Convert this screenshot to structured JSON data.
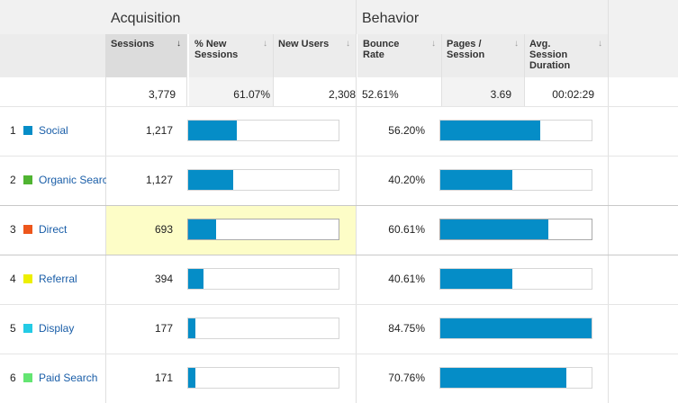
{
  "groups": {
    "acquisition": "Acquisition",
    "behavior": "Behavior"
  },
  "columns": {
    "sessions": "Sessions",
    "pct_new_sessions": "% New Sessions",
    "new_users": "New Users",
    "bounce_rate": "Bounce Rate",
    "pages_session": "Pages / Session",
    "avg_session_duration": "Avg. Session Duration"
  },
  "totals": {
    "sessions": "3,779",
    "pct_new_sessions": "61.07%",
    "new_users": "2,308",
    "bounce_rate": "52.61%",
    "pages_session": "3.69",
    "avg_session_duration": "00:02:29"
  },
  "rows": [
    {
      "rank": "1",
      "channel": "Social",
      "color": "#058dc7",
      "sessions": "1,217",
      "sessions_share": 0.322,
      "bounce_rate": "56.20%",
      "bounce_share": 0.663
    },
    {
      "rank": "2",
      "channel": "Organic Search",
      "color": "#50b432",
      "sessions": "1,127",
      "sessions_share": 0.298,
      "bounce_rate": "40.20%",
      "bounce_share": 0.474
    },
    {
      "rank": "3",
      "channel": "Direct",
      "color": "#ed561b",
      "sessions": "693",
      "sessions_share": 0.183,
      "bounce_rate": "60.61%",
      "bounce_share": 0.715
    },
    {
      "rank": "4",
      "channel": "Referral",
      "color": "#edef00",
      "sessions": "394",
      "sessions_share": 0.104,
      "bounce_rate": "40.61%",
      "bounce_share": 0.479
    },
    {
      "rank": "5",
      "channel": "Display",
      "color": "#24cbe5",
      "sessions": "177",
      "sessions_share": 0.047,
      "bounce_rate": "84.75%",
      "bounce_share": 1.0
    },
    {
      "rank": "6",
      "channel": "Paid Search",
      "color": "#64e572",
      "sessions": "171",
      "sessions_share": 0.045,
      "bounce_rate": "70.76%",
      "bounce_share": 0.835
    }
  ]
}
